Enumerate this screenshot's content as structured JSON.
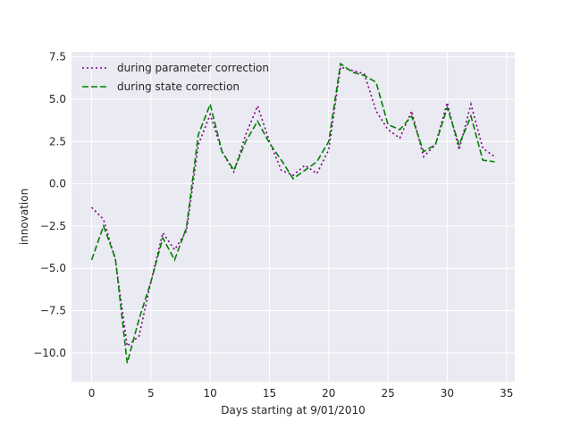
{
  "chart_data": {
    "type": "line",
    "title": "",
    "xlabel": "Days starting at 9/01/2010",
    "ylabel": "innovation",
    "xlim": [
      -1.7,
      35.7
    ],
    "ylim": [
      -11.7,
      7.8
    ],
    "xticks": [
      0,
      5,
      10,
      15,
      20,
      25,
      30,
      35
    ],
    "xtick_labels": [
      "0",
      "5",
      "10",
      "15",
      "20",
      "25",
      "30",
      "35"
    ],
    "yticks": [
      -10.0,
      -7.5,
      -5.0,
      -2.5,
      0.0,
      2.5,
      5.0,
      7.5
    ],
    "ytick_labels": [
      "−10.0",
      "−7.5",
      "−5.0",
      "−2.5",
      "0.0",
      "2.5",
      "5.0",
      "7.5"
    ],
    "grid": true,
    "legend_position": "top-left",
    "x": [
      0,
      1,
      2,
      3,
      4,
      5,
      6,
      7,
      8,
      9,
      10,
      11,
      12,
      13,
      14,
      15,
      16,
      17,
      18,
      19,
      20,
      21,
      22,
      23,
      24,
      25,
      26,
      27,
      28,
      29,
      30,
      31,
      32,
      33,
      34
    ],
    "series": [
      {
        "name": "during parameter correction",
        "color": "#800080",
        "style": "dotted",
        "values": [
          -1.4,
          -2.1,
          -4.5,
          -9.6,
          -9.0,
          -5.8,
          -2.9,
          -3.9,
          -2.8,
          2.3,
          4.1,
          1.9,
          0.7,
          2.9,
          4.6,
          2.5,
          0.8,
          0.5,
          1.1,
          0.6,
          2.0,
          6.9,
          6.7,
          6.5,
          4.3,
          3.2,
          2.7,
          4.3,
          1.6,
          2.3,
          4.8,
          2.0,
          4.7,
          2.1,
          1.6
        ]
      },
      {
        "name": "during state correction",
        "color": "#008000",
        "style": "dashed",
        "values": [
          -4.5,
          -2.5,
          -4.4,
          -10.6,
          -8.0,
          -5.8,
          -3.2,
          -4.5,
          -2.6,
          2.9,
          4.7,
          1.9,
          0.8,
          2.5,
          3.7,
          2.4,
          1.4,
          0.3,
          0.8,
          1.3,
          2.5,
          7.1,
          6.6,
          6.4,
          6.0,
          3.5,
          3.2,
          4.0,
          1.9,
          2.3,
          4.5,
          2.3,
          4.0,
          1.4,
          1.3
        ]
      }
    ]
  }
}
